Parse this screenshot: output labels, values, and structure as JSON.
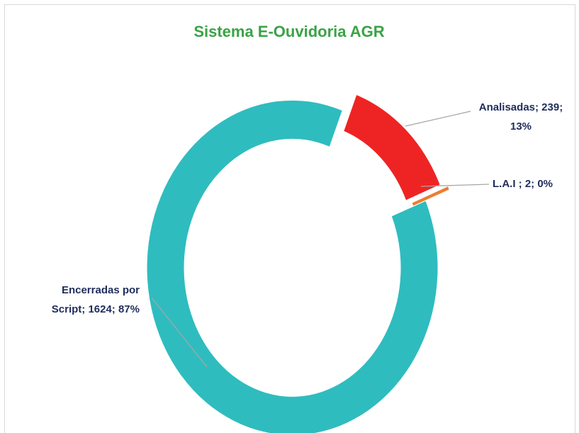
{
  "chart_data": {
    "type": "donut",
    "title": "Sistema E-Ouvidoria AGR",
    "categories": [
      "Analisadas",
      "L.A.I ",
      "Encerradas por Script"
    ],
    "values": [
      239,
      2,
      1624
    ],
    "colors": [
      "#ee2424",
      "#ed7d31",
      "#2fbcbf"
    ],
    "labels": [
      [
        "Analisadas; 239;",
        "13%"
      ],
      [
        "L.A.I ; 2; 0%"
      ],
      [
        "Encerradas por",
        "Script; 1624; 87%"
      ]
    ]
  }
}
